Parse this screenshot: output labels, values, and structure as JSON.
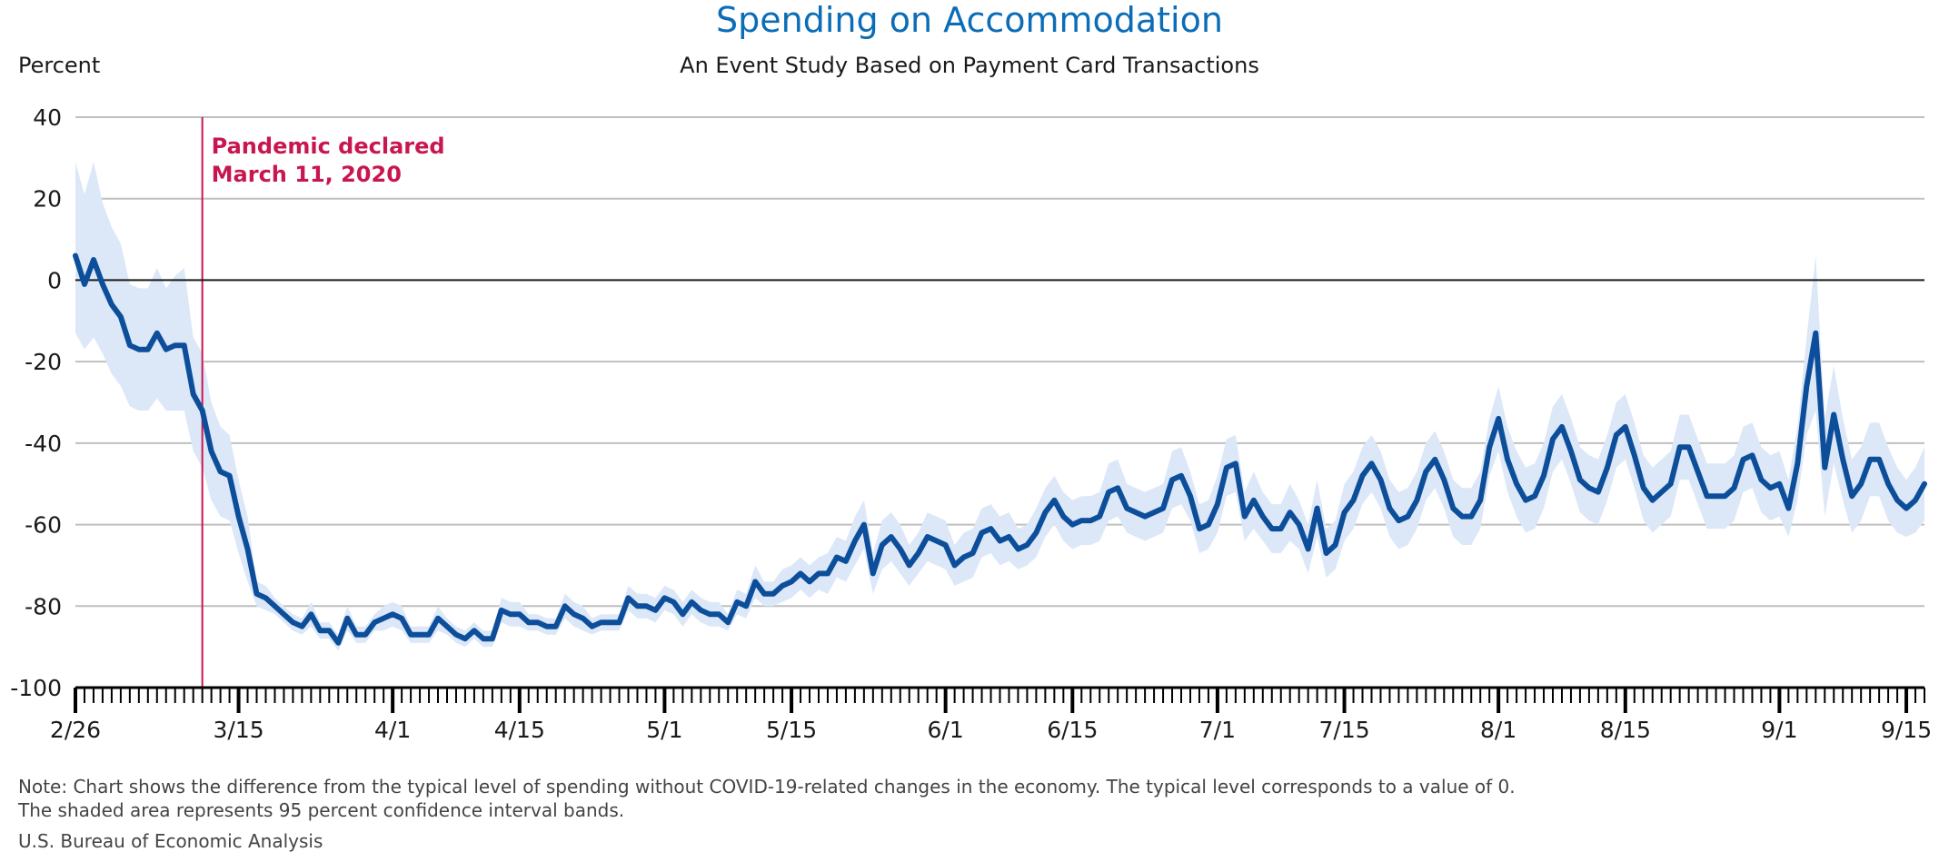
{
  "header": {
    "title": "Spending on Accommodation",
    "subtitle": "An Event Study Based on Payment Card Transactions",
    "y_unit": "Percent"
  },
  "footer": {
    "note_line1": "Note: Chart shows the difference from the typical level of spending without COVID-19-related changes in the economy. The typical level corresponds to a value of 0.",
    "note_line2": "The shaded area represents 95 percent confidence interval bands.",
    "source": "U.S. Bureau of Economic Analysis"
  },
  "colors": {
    "title": "#0b6db7",
    "line": "#0d4e9b",
    "band": "#dce8f8",
    "event": "#c8174f",
    "grid": "#bfbfbf",
    "zero": "#1a1a1a"
  },
  "chart_data": {
    "type": "line",
    "title": "Spending on Accommodation",
    "subtitle": "An Event Study Based on Payment Card Transactions",
    "ylabel": "Percent",
    "ylim": [
      -100,
      40
    ],
    "yticks": [
      40,
      20,
      0,
      -20,
      -40,
      -60,
      -80,
      -100
    ],
    "x_start": "2020-02-26",
    "x_end": "2020-09-17",
    "x_tick_labels": [
      "2/26",
      "3/15",
      "4/1",
      "4/15",
      "5/1",
      "5/15",
      "6/1",
      "6/15",
      "7/1",
      "7/15",
      "8/1",
      "8/15",
      "9/1",
      "9/15"
    ],
    "x_tick_dates": [
      "2020-02-26",
      "2020-03-15",
      "2020-04-01",
      "2020-04-15",
      "2020-05-01",
      "2020-05-15",
      "2020-06-01",
      "2020-06-15",
      "2020-07-01",
      "2020-07-15",
      "2020-08-01",
      "2020-08-15",
      "2020-09-01",
      "2020-09-15"
    ],
    "grid": true,
    "annotation": {
      "date": "2020-03-11",
      "line1": "Pandemic declared",
      "line2": "March 11, 2020"
    },
    "series": [
      {
        "values": [
          6,
          -1,
          5,
          -1,
          -6,
          -9,
          -16,
          -17,
          -17,
          -13,
          -17,
          -16,
          -16,
          -28,
          -32,
          -42,
          -47,
          -48,
          -58,
          -66,
          -77,
          -78,
          -80,
          -82,
          -84,
          -85,
          -82,
          -86,
          -86,
          -89,
          -83,
          -87,
          -87,
          -84,
          -83,
          -82,
          -83,
          -87,
          -87,
          -87,
          -83,
          -85,
          -87,
          -88,
          -86,
          -88,
          -88,
          -81,
          -82,
          -82,
          -84,
          -84,
          -85,
          -85,
          -80,
          -82,
          -83,
          -85,
          -84,
          -84,
          -84,
          -78,
          -80,
          -80,
          -81,
          -78,
          -79,
          -82,
          -79,
          -81,
          -82,
          -82,
          -84,
          -79,
          -80,
          -74,
          -77,
          -77,
          -75,
          -74,
          -72,
          -74,
          -72,
          -72,
          -68,
          -69,
          -64,
          -60,
          -72,
          -65,
          -63,
          -66,
          -70,
          -67,
          -63,
          -64,
          -65,
          -70,
          -68,
          -67,
          -62,
          -61,
          -64,
          -63,
          -66,
          -65,
          -62,
          -57,
          -54,
          -58,
          -60,
          -59,
          -59,
          -58,
          -52,
          -51,
          -56,
          -57,
          -58,
          -57,
          -56,
          -49,
          -48,
          -53,
          -61,
          -60,
          -55,
          -46,
          -45,
          -58,
          -54,
          -58,
          -61,
          -61,
          -57,
          -60,
          -66,
          -56,
          -67,
          -65,
          -57,
          -54,
          -48,
          -45,
          -49,
          -56,
          -59,
          -58,
          -54,
          -47,
          -44,
          -49,
          -56,
          -58,
          -58,
          -54,
          -41,
          -34,
          -44,
          -50,
          -54,
          -53,
          -48,
          -39,
          -36,
          -42,
          -49,
          -51,
          -52,
          -46,
          -38,
          -36,
          -43,
          -51,
          -54,
          -52,
          -50,
          -41,
          -41,
          -47,
          -53,
          -53,
          -53,
          -51,
          -44,
          -43,
          -49,
          -51,
          -50,
          -56,
          -45,
          -26,
          -13,
          -46,
          -33,
          -44,
          -53,
          -50,
          -44,
          -44,
          -50,
          -54,
          -56,
          -54,
          -50
        ],
        "lower": [
          -13,
          -17,
          -14,
          -18,
          -23,
          -26,
          -31,
          -32,
          -32,
          -29,
          -32,
          -32,
          -32,
          -42,
          -46,
          -54,
          -58,
          -59,
          -67,
          -74,
          -80,
          -81,
          -82,
          -84,
          -86,
          -87,
          -85,
          -88,
          -88,
          -91,
          -86,
          -89,
          -89,
          -86,
          -86,
          -85,
          -86,
          -89,
          -89,
          -89,
          -86,
          -87,
          -89,
          -90,
          -88,
          -90,
          -90,
          -84,
          -85,
          -85,
          -86,
          -86,
          -87,
          -87,
          -83,
          -85,
          -86,
          -87,
          -86,
          -86,
          -86,
          -81,
          -83,
          -83,
          -84,
          -81,
          -82,
          -85,
          -82,
          -84,
          -85,
          -85,
          -86,
          -82,
          -83,
          -78,
          -80,
          -80,
          -79,
          -78,
          -76,
          -78,
          -76,
          -77,
          -73,
          -74,
          -70,
          -66,
          -77,
          -71,
          -69,
          -72,
          -75,
          -72,
          -69,
          -70,
          -71,
          -75,
          -74,
          -73,
          -68,
          -67,
          -70,
          -69,
          -71,
          -70,
          -68,
          -63,
          -60,
          -64,
          -66,
          -65,
          -65,
          -64,
          -59,
          -58,
          -62,
          -63,
          -64,
          -63,
          -62,
          -56,
          -55,
          -59,
          -67,
          -66,
          -62,
          -53,
          -52,
          -64,
          -61,
          -64,
          -67,
          -67,
          -64,
          -66,
          -72,
          -63,
          -73,
          -71,
          -64,
          -61,
          -55,
          -52,
          -56,
          -63,
          -66,
          -65,
          -61,
          -54,
          -51,
          -56,
          -63,
          -65,
          -65,
          -61,
          -48,
          -42,
          -52,
          -58,
          -62,
          -61,
          -56,
          -47,
          -44,
          -50,
          -57,
          -59,
          -60,
          -54,
          -46,
          -44,
          -51,
          -59,
          -62,
          -60,
          -58,
          -49,
          -49,
          -55,
          -61,
          -61,
          -61,
          -59,
          -52,
          -51,
          -57,
          -59,
          -58,
          -63,
          -54,
          -38,
          -32,
          -58,
          -45,
          -54,
          -62,
          -59,
          -53,
          -53,
          -59,
          -62,
          -63,
          -62,
          -59
        ],
        "upper": [
          29,
          21,
          29,
          19,
          13,
          9,
          -1,
          -2,
          -2,
          3,
          -2,
          1,
          3,
          -14,
          -18,
          -30,
          -36,
          -38,
          -49,
          -58,
          -74,
          -75,
          -78,
          -80,
          -82,
          -83,
          -79,
          -84,
          -84,
          -87,
          -80,
          -85,
          -85,
          -82,
          -80,
          -79,
          -80,
          -85,
          -85,
          -85,
          -80,
          -83,
          -85,
          -86,
          -84,
          -86,
          -86,
          -78,
          -79,
          -79,
          -82,
          -82,
          -83,
          -83,
          -77,
          -79,
          -80,
          -83,
          -82,
          -82,
          -82,
          -75,
          -77,
          -77,
          -78,
          -75,
          -76,
          -79,
          -76,
          -78,
          -79,
          -79,
          -82,
          -76,
          -77,
          -70,
          -74,
          -74,
          -71,
          -70,
          -68,
          -70,
          -68,
          -67,
          -63,
          -64,
          -58,
          -54,
          -67,
          -59,
          -57,
          -60,
          -65,
          -62,
          -57,
          -58,
          -59,
          -65,
          -62,
          -61,
          -56,
          -55,
          -58,
          -57,
          -61,
          -60,
          -56,
          -51,
          -48,
          -52,
          -54,
          -53,
          -53,
          -52,
          -45,
          -44,
          -50,
          -51,
          -52,
          -51,
          -50,
          -42,
          -41,
          -47,
          -55,
          -54,
          -48,
          -39,
          -38,
          -52,
          -47,
          -52,
          -55,
          -55,
          -50,
          -54,
          -60,
          -49,
          -61,
          -59,
          -50,
          -47,
          -41,
          -38,
          -42,
          -49,
          -52,
          -51,
          -47,
          -40,
          -37,
          -42,
          -49,
          -51,
          -51,
          -47,
          -34,
          -26,
          -36,
          -42,
          -46,
          -45,
          -40,
          -31,
          -28,
          -34,
          -41,
          -43,
          -44,
          -38,
          -30,
          -28,
          -35,
          -43,
          -46,
          -44,
          -42,
          -33,
          -33,
          -39,
          -45,
          -45,
          -45,
          -43,
          -36,
          -35,
          -41,
          -43,
          -42,
          -49,
          -36,
          -14,
          6,
          -34,
          -21,
          -34,
          -44,
          -41,
          -35,
          -35,
          -41,
          -46,
          -49,
          -46,
          -41
        ]
      }
    ]
  }
}
